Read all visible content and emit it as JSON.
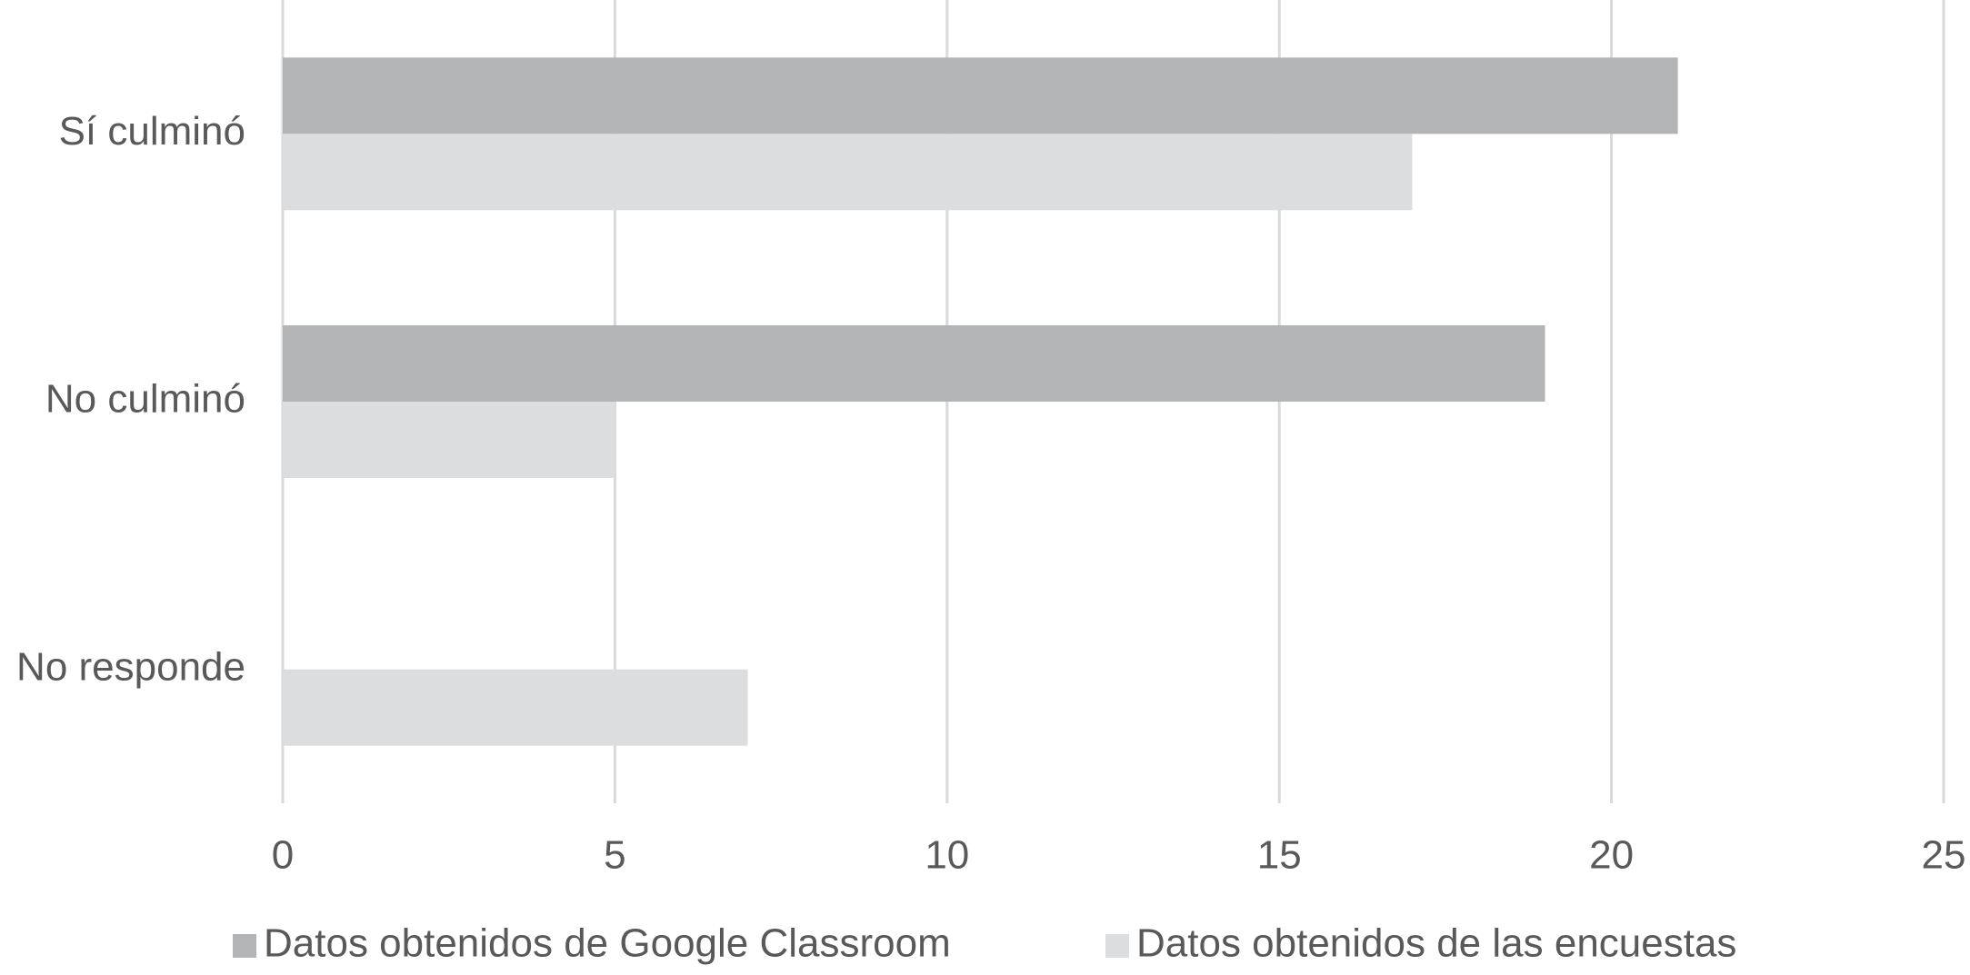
{
  "chart_data": {
    "type": "barh",
    "categories": [
      "Sí culminó",
      "No culminó",
      "No responde"
    ],
    "series": [
      {
        "name": "Datos obtenidos de Google Classroom",
        "color": "#b3b4b5",
        "values": [
          21,
          19,
          null
        ]
      },
      {
        "name": "Datos obtenidos de las encuestas",
        "color": "#dcddde",
        "values": [
          17,
          5,
          7
        ]
      }
    ],
    "xlim": [
      0,
      25
    ],
    "xticks": [
      0,
      5,
      10,
      15,
      20,
      25
    ],
    "grid": true,
    "legend": "bottom"
  }
}
